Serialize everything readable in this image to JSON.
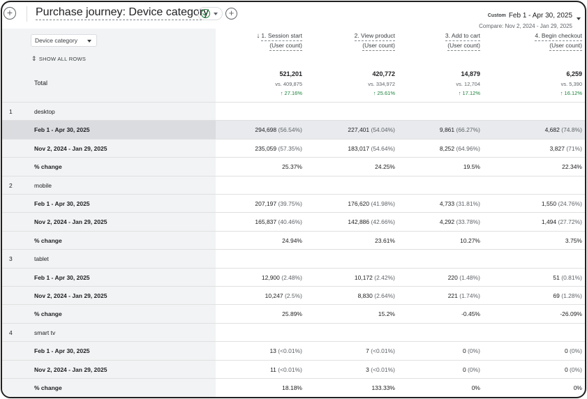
{
  "header": {
    "add_label": "+",
    "title": "Purchase journey: Device category",
    "add_step_label": "+",
    "custom_badge": "Custom",
    "date_range": "Feb 1 - Apr 30, 2025",
    "compare": "Compare: Nov 2, 2024 - Jan 29, 2025"
  },
  "controls": {
    "dimension_select": "Device category",
    "show_all_rows": "SHOW ALL ROWS",
    "total_label": "Total"
  },
  "columns": [
    {
      "title": "1. Session start",
      "sub": "(User count)",
      "sorted": true
    },
    {
      "title": "2. View product",
      "sub": "(User count)"
    },
    {
      "title": "3. Add to cart",
      "sub": "(User count)"
    },
    {
      "title": "4. Begin checkout",
      "sub": "(User count)"
    }
  ],
  "totals": [
    {
      "value": "521,201",
      "vs": "vs. 409,875",
      "change": "↑ 27.16%"
    },
    {
      "value": "420,772",
      "vs": "vs. 334,972",
      "change": "↑ 25.61%"
    },
    {
      "value": "14,879",
      "vs": "vs. 12,704",
      "change": "↑ 17.12%"
    },
    {
      "value": "6,259",
      "vs": "vs. 5,390",
      "change": "↑ 16.12%"
    }
  ],
  "rows": [
    {
      "idx": "1",
      "label": "desktop",
      "bold": true,
      "cells": []
    },
    {
      "idx": "",
      "label": "Feb 1 - Apr 30, 2025",
      "selected": true,
      "cells": [
        [
          "294,698",
          "(56.54%)"
        ],
        [
          "227,401",
          "(54.04%)"
        ],
        [
          "9,861",
          "(66.27%)"
        ],
        [
          "4,682",
          "(74.8%)"
        ]
      ]
    },
    {
      "idx": "",
      "label": "Nov 2, 2024 - Jan 29, 2025",
      "cells": [
        [
          "235,059",
          "(57.35%)"
        ],
        [
          "183,017",
          "(54.64%)"
        ],
        [
          "8,252",
          "(64.96%)"
        ],
        [
          "3,827",
          "(71%)"
        ]
      ]
    },
    {
      "idx": "",
      "label": "% change",
      "cells": [
        [
          "25.37%",
          ""
        ],
        [
          "24.25%",
          ""
        ],
        [
          "19.5%",
          ""
        ],
        [
          "22.34%",
          ""
        ]
      ]
    },
    {
      "idx": "2",
      "label": "mobile",
      "bold": true,
      "cells": []
    },
    {
      "idx": "",
      "label": "Feb 1 - Apr 30, 2025",
      "cells": [
        [
          "207,197",
          "(39.75%)"
        ],
        [
          "176,620",
          "(41.98%)"
        ],
        [
          "4,733",
          "(31.81%)"
        ],
        [
          "1,550",
          "(24.76%)"
        ]
      ]
    },
    {
      "idx": "",
      "label": "Nov 2, 2024 - Jan 29, 2025",
      "cells": [
        [
          "165,837",
          "(40.46%)"
        ],
        [
          "142,886",
          "(42.66%)"
        ],
        [
          "4,292",
          "(33.78%)"
        ],
        [
          "1,494",
          "(27.72%)"
        ]
      ]
    },
    {
      "idx": "",
      "label": "% change",
      "cells": [
        [
          "24.94%",
          ""
        ],
        [
          "23.61%",
          ""
        ],
        [
          "10.27%",
          ""
        ],
        [
          "3.75%",
          ""
        ]
      ]
    },
    {
      "idx": "3",
      "label": "tablet",
      "bold": true,
      "cells": []
    },
    {
      "idx": "",
      "label": "Feb 1 - Apr 30, 2025",
      "cells": [
        [
          "12,900",
          "(2.48%)"
        ],
        [
          "10,172",
          "(2.42%)"
        ],
        [
          "220",
          "(1.48%)"
        ],
        [
          "51",
          "(0.81%)"
        ]
      ]
    },
    {
      "idx": "",
      "label": "Nov 2, 2024 - Jan 29, 2025",
      "cells": [
        [
          "10,247",
          "(2.5%)"
        ],
        [
          "8,830",
          "(2.64%)"
        ],
        [
          "221",
          "(1.74%)"
        ],
        [
          "69",
          "(1.28%)"
        ]
      ]
    },
    {
      "idx": "",
      "label": "% change",
      "cells": [
        [
          "25.89%",
          ""
        ],
        [
          "15.2%",
          ""
        ],
        [
          "-0.45%",
          ""
        ],
        [
          "-26.09%",
          ""
        ]
      ]
    },
    {
      "idx": "4",
      "label": "smart tv",
      "bold": true,
      "cells": []
    },
    {
      "idx": "",
      "label": "Feb 1 - Apr 30, 2025",
      "cells": [
        [
          "13",
          "(<0.01%)"
        ],
        [
          "7",
          "(<0.01%)"
        ],
        [
          "0",
          "(0%)"
        ],
        [
          "0",
          "(0%)"
        ]
      ]
    },
    {
      "idx": "",
      "label": "Nov 2, 2024 - Jan 29, 2025",
      "cells": [
        [
          "11",
          "(<0.01%)"
        ],
        [
          "3",
          "(<0.01%)"
        ],
        [
          "0",
          "(0%)"
        ],
        [
          "0",
          "(0%)"
        ]
      ]
    },
    {
      "idx": "",
      "label": "% change",
      "cells": [
        [
          "18.18%",
          ""
        ],
        [
          "133.33%",
          ""
        ],
        [
          "0%",
          ""
        ],
        [
          "0%",
          ""
        ]
      ]
    }
  ],
  "colors": {
    "positive": "#188038",
    "selected_row": "#e8eaed",
    "dimension_shade": "#f1f3f4"
  },
  "icons": {
    "add": "plus-circle-icon",
    "status": "check-circle-icon",
    "sort": "arrow-down-icon",
    "expand": "unfold-icon"
  }
}
